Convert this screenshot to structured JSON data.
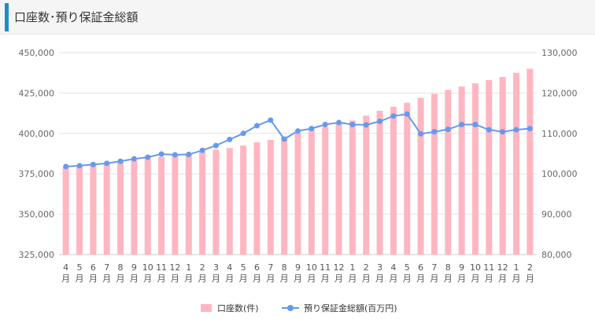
{
  "header": {
    "title": "口座数･預り保証金総額",
    "accent_color": "#1a8fc6"
  },
  "chart_data": {
    "type": "bar+line",
    "title": "口座数･預り保証金総額",
    "categories": [
      [
        "4",
        "月"
      ],
      [
        "5",
        "月"
      ],
      [
        "6",
        "月"
      ],
      [
        "7",
        "月"
      ],
      [
        "8",
        "月"
      ],
      [
        "9",
        "月"
      ],
      [
        "10",
        "月"
      ],
      [
        "11",
        "月"
      ],
      [
        "12",
        "月"
      ],
      [
        "1",
        "月"
      ],
      [
        "2",
        "月"
      ],
      [
        "3",
        "月"
      ],
      [
        "4",
        "月"
      ],
      [
        "5",
        "月"
      ],
      [
        "6",
        "月"
      ],
      [
        "7",
        "月"
      ],
      [
        "8",
        "月"
      ],
      [
        "9",
        "月"
      ],
      [
        "10",
        "月"
      ],
      [
        "11",
        "月"
      ],
      [
        "12",
        "月"
      ],
      [
        "1",
        "月"
      ],
      [
        "2",
        "月"
      ],
      [
        "3",
        "月"
      ],
      [
        "4",
        "月"
      ],
      [
        "5",
        "月"
      ],
      [
        "6",
        "月"
      ],
      [
        "7",
        "月"
      ],
      [
        "8",
        "月"
      ],
      [
        "9",
        "月"
      ],
      [
        "10",
        "月"
      ],
      [
        "11",
        "月"
      ],
      [
        "12",
        "月"
      ],
      [
        "1",
        "月"
      ],
      [
        "2",
        "月"
      ]
    ],
    "left_axis": {
      "min": 325000,
      "max": 450000,
      "ticks": [
        "325,000",
        "350,000",
        "375,000",
        "400,000",
        "425,000",
        "450,000"
      ]
    },
    "right_axis": {
      "min": 80000,
      "max": 130000,
      "ticks": [
        "80,000",
        "90,000",
        "100,000",
        "110,000",
        "120,000",
        "130,000"
      ]
    },
    "grid": true,
    "legend_position": "bottom",
    "series": [
      {
        "name": "口座数(件)",
        "type": "bar",
        "axis": "left",
        "color": "#ffb6c1",
        "values": [
          379000,
          380000,
          380500,
          381500,
          382500,
          383500,
          384500,
          385500,
          386500,
          387500,
          388500,
          390000,
          391000,
          392500,
          394500,
          396000,
          398000,
          400000,
          402000,
          404000,
          406000,
          408000,
          411000,
          414000,
          416500,
          419000,
          422000,
          424500,
          427000,
          429000,
          431000,
          433000,
          435000,
          437500,
          440000
        ]
      },
      {
        "name": "預り保証金総額(百万円)",
        "type": "line",
        "axis": "right",
        "color": "#6699ee",
        "values": [
          101800,
          102000,
          102300,
          102600,
          103100,
          103700,
          104100,
          104900,
          104700,
          104800,
          105800,
          107000,
          108500,
          110000,
          111900,
          113300,
          108600,
          110600,
          111200,
          112200,
          112700,
          112200,
          112100,
          113000,
          114300,
          114800,
          109900,
          110400,
          111000,
          112200,
          112200,
          110900,
          110400,
          110900,
          111200
        ]
      }
    ]
  }
}
